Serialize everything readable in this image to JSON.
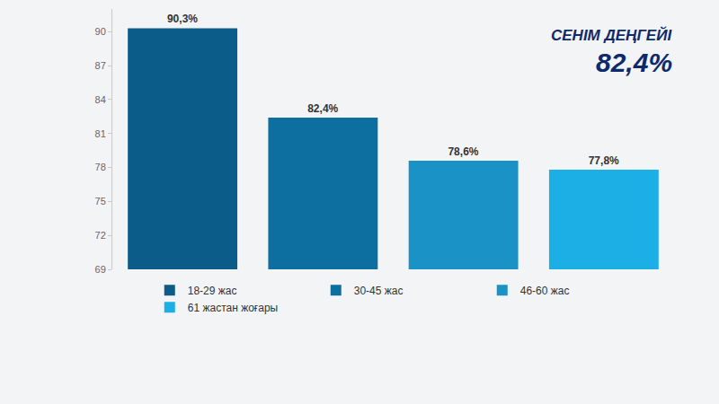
{
  "chart_data": {
    "type": "bar",
    "categories": [
      "18-29 жас",
      "30-45 жас",
      "46-60 жас",
      "61 жастан жоғары"
    ],
    "values": [
      90.3,
      82.4,
      78.6,
      77.8
    ],
    "value_labels": [
      "90,3%",
      "82,4%",
      "78,6%",
      "77,8%"
    ],
    "colors": [
      "#0b5c88",
      "#0c6fa0",
      "#1a92c6",
      "#1bafe6"
    ],
    "ylim": [
      69,
      92
    ],
    "yticks": [
      69,
      72,
      75,
      78,
      81,
      84,
      87,
      90
    ],
    "data_labels": true,
    "tick_labels": "y",
    "legend": "bottom",
    "annotations": [
      "СЕНІМ ДЕҢГЕЙІ",
      "82,4%"
    ]
  }
}
